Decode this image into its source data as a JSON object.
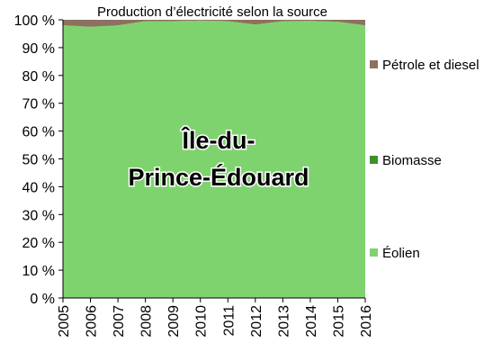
{
  "chart_data": {
    "type": "area",
    "stacked": true,
    "title": "Production d’électricité selon la source",
    "overlay_label_lines": [
      "Île-du-",
      "Prince-Édouard"
    ],
    "x": [
      "2005",
      "2006",
      "2007",
      "2008",
      "2009",
      "2010",
      "2011",
      "2012",
      "2013",
      "2014",
      "2015",
      "2016"
    ],
    "ylim": [
      0,
      100
    ],
    "yticks": [
      "0 %",
      "10 %",
      "20 %",
      "30 %",
      "40 %",
      "50 %",
      "60 %",
      "70 %",
      "80 %",
      "90 %",
      "100 %"
    ],
    "grid": false,
    "legend_position": "right",
    "series": [
      {
        "name": "Éolien",
        "color": "#7fd36f",
        "values": [
          98.0,
          97.5,
          98.0,
          99.5,
          99.5,
          99.7,
          99.5,
          98.3,
          99.5,
          99.6,
          99.3,
          98.0
        ]
      },
      {
        "name": "Biomasse",
        "color": "#3f8f2a",
        "values": [
          0,
          0,
          0,
          0,
          0,
          0,
          0,
          0,
          0,
          0,
          0,
          0
        ]
      },
      {
        "name": "Pétrole et diesel",
        "color": "#8c7160",
        "values": [
          2.0,
          2.5,
          2.0,
          0.5,
          0.5,
          0.3,
          0.5,
          1.7,
          0.5,
          0.4,
          0.7,
          2.0
        ]
      }
    ]
  }
}
